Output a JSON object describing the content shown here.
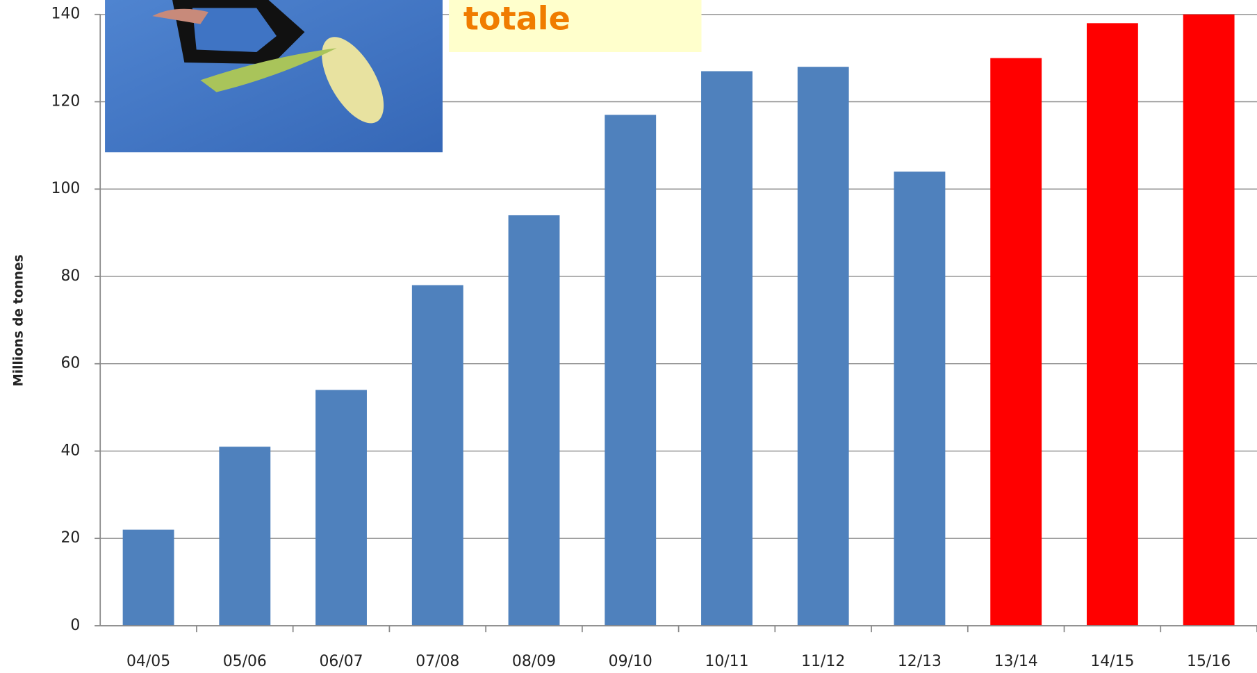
{
  "chart_data": {
    "type": "bar",
    "annotation": "totale",
    "y_label": "Millions de tonnes",
    "categories": [
      "04/05",
      "05/06",
      "06/07",
      "07/08",
      "08/09",
      "09/10",
      "10/11",
      "11/12",
      "12/13",
      "13/14",
      "14/15",
      "15/16"
    ],
    "values": [
      22,
      41,
      54,
      78,
      94,
      117,
      127,
      128,
      104,
      130,
      138,
      140
    ],
    "colors": [
      "#4f81bd",
      "#4f81bd",
      "#4f81bd",
      "#4f81bd",
      "#4f81bd",
      "#4f81bd",
      "#4f81bd",
      "#4f81bd",
      "#4f81bd",
      "#ff0000",
      "#ff0000",
      "#ff0000"
    ],
    "ylim": [
      0,
      140
    ],
    "yticks": [
      0,
      20,
      40,
      60,
      80,
      100,
      120,
      140
    ],
    "grid": true
  }
}
